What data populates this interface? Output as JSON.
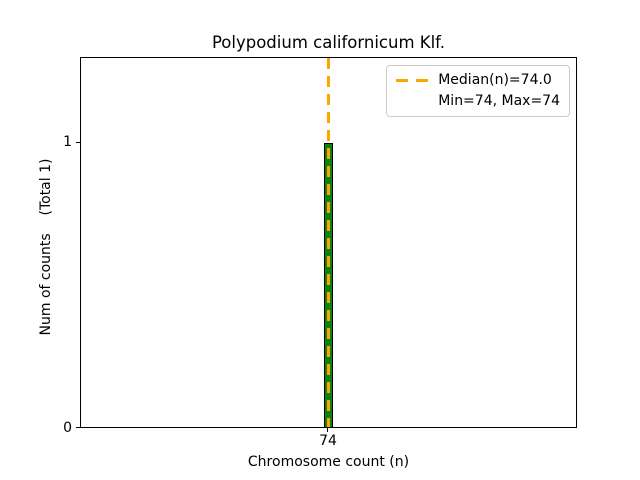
{
  "chart_data": {
    "type": "bar",
    "title": "Polypodium californicum Klf.",
    "xlabel": "Chromosome count (n)",
    "ylabel": "Num of counts    (Total 1)",
    "categories": [
      74
    ],
    "values": [
      1
    ],
    "total_counts": 1,
    "x_tick_labels": [
      "74"
    ],
    "y_tick_labels": [
      "0",
      "1"
    ],
    "ylim": [
      0,
      1.3
    ],
    "grid": false,
    "colors": {
      "bar_fill": "#0c830c",
      "bar_edge": "#000000",
      "median_line": "#FFA500",
      "spine": "#000000",
      "legend_border": "#cccccc",
      "background": "#ffffff"
    },
    "median_line": {
      "value": 74.0,
      "style": "dashed",
      "orientation": "vertical"
    },
    "stats": {
      "median": 74.0,
      "min": 74,
      "max": 74
    },
    "legend": {
      "position": "top-right",
      "entries": [
        {
          "label": "Median(n)=74.0",
          "marker": "orange-dashed-line"
        },
        {
          "label": "Min=74, Max=74",
          "marker": "none"
        }
      ]
    }
  }
}
